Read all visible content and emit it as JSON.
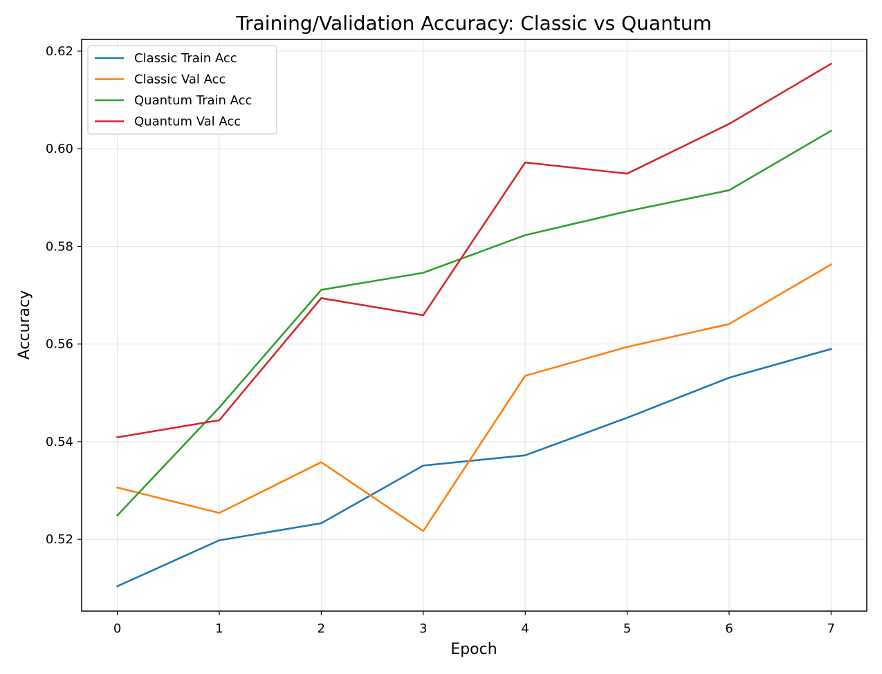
{
  "chart_data": {
    "type": "line",
    "title": "Training/Validation Accuracy: Classic vs Quantum",
    "xlabel": "Epoch",
    "ylabel": "Accuracy",
    "x": [
      0,
      1,
      2,
      3,
      4,
      5,
      6,
      7
    ],
    "xlim": [
      -0.35,
      7.35
    ],
    "ylim": [
      0.5053,
      0.6224
    ],
    "x_ticks": [
      0,
      1,
      2,
      3,
      4,
      5,
      6,
      7
    ],
    "y_ticks": [
      0.52,
      0.54,
      0.56,
      0.58,
      0.6,
      0.62
    ],
    "y_tick_labels": [
      "0.52",
      "0.54",
      "0.56",
      "0.58",
      "0.60",
      "0.62"
    ],
    "grid": true,
    "legend_position": "top-left",
    "series": [
      {
        "name": "Classic Train Acc",
        "color": "#1f77b4",
        "values": [
          0.5104,
          0.5198,
          0.5233,
          0.5351,
          0.5372,
          0.5449,
          0.5531,
          0.559
        ]
      },
      {
        "name": "Classic Val Acc",
        "color": "#ff7f0e",
        "values": [
          0.5306,
          0.5254,
          0.5358,
          0.5217,
          0.5535,
          0.5594,
          0.5641,
          0.5763
        ]
      },
      {
        "name": "Quantum Train Acc",
        "color": "#2ca02c",
        "values": [
          0.5249,
          0.547,
          0.5711,
          0.5746,
          0.5823,
          0.5872,
          0.5915,
          0.6037
        ]
      },
      {
        "name": "Quantum Val Acc",
        "color": "#d62728",
        "values": [
          0.5409,
          0.5444,
          0.5694,
          0.5659,
          0.5972,
          0.5949,
          0.6051,
          0.6174
        ]
      }
    ]
  }
}
